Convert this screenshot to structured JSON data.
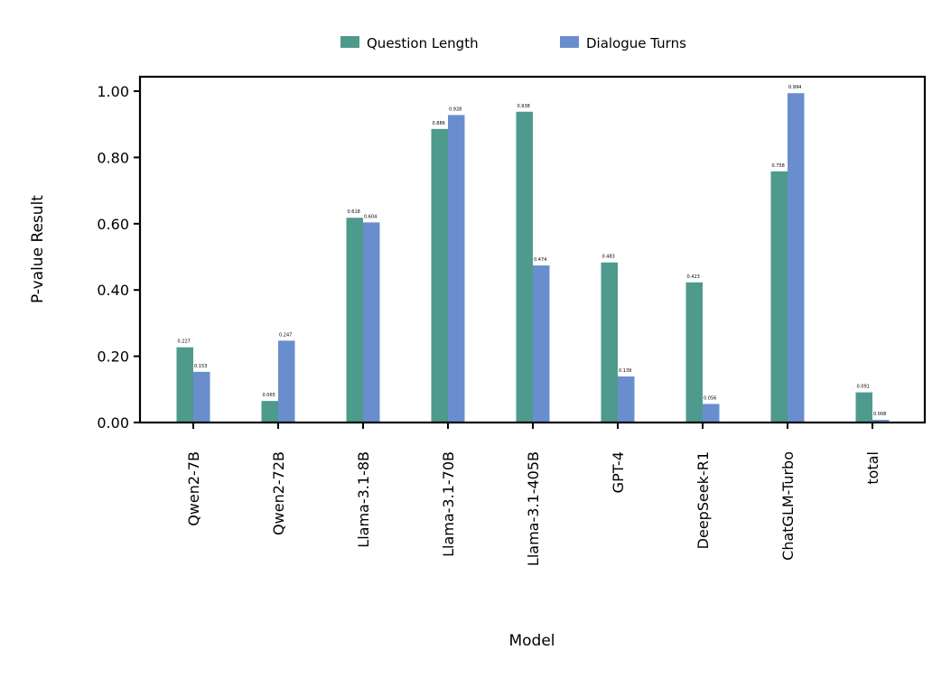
{
  "chart_data": {
    "type": "bar",
    "title": "",
    "xlabel": "Model",
    "ylabel": "P-value Result",
    "ylim": [
      0,
      1.05
    ],
    "yticks": [
      "0.00",
      "0.20",
      "0.40",
      "0.60",
      "0.80",
      "1.00"
    ],
    "ytick_values": [
      0,
      0.2,
      0.4,
      0.6,
      0.8,
      1.0
    ],
    "grid": false,
    "legend_position": "top-center",
    "categories": [
      "Qwen2-7B",
      "Qwen2-72B",
      "Llama-3.1-8B",
      "Llama-3.1-70B",
      "Llama-3.1-405B",
      "GPT-4",
      "DeepSeek-R1",
      "ChatGLM-Turbo",
      "total"
    ],
    "series": [
      {
        "name": "Question Length",
        "color": "#4e9a8c",
        "values": [
          0.227,
          0.065,
          0.618,
          0.886,
          0.938,
          0.483,
          0.423,
          0.758,
          0.091
        ],
        "labels": [
          "0.227",
          "0.065",
          "0.618",
          "0.886",
          "0.938",
          "0.483",
          "0.423",
          "0.758",
          "0.091"
        ]
      },
      {
        "name": "Dialogue Turns",
        "color": "#6a8ecd",
        "values": [
          0.153,
          0.247,
          0.604,
          0.928,
          0.474,
          0.139,
          0.056,
          0.994,
          0.008
        ],
        "labels": [
          "0.153",
          "0.247",
          "0.604",
          "0.928",
          "0.474",
          "0.139",
          "0.056",
          "0.994",
          "0.008"
        ]
      }
    ]
  }
}
